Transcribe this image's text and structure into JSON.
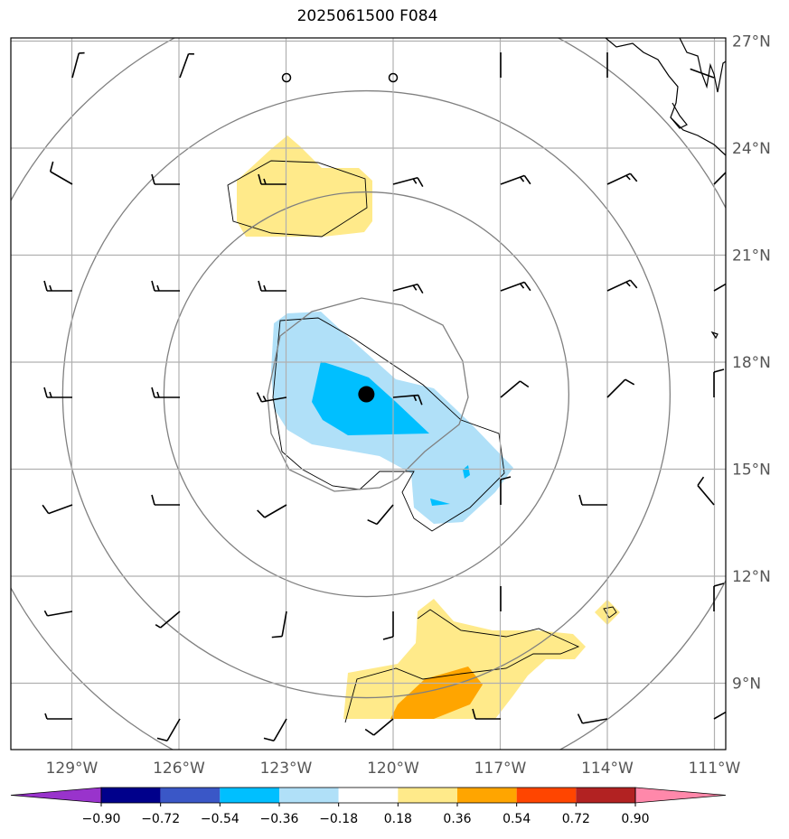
{
  "title": "2025061500 F084",
  "lat_ticks": [
    {
      "value": 27,
      "label": "27°N"
    },
    {
      "value": 24,
      "label": "24°N"
    },
    {
      "value": 21,
      "label": "21°N"
    },
    {
      "value": 18,
      "label": "18°N"
    },
    {
      "value": 15,
      "label": "15°N"
    },
    {
      "value": 12,
      "label": "12°N"
    },
    {
      "value": 9,
      "label": "9°N"
    }
  ],
  "lon_ticks": [
    {
      "value": -129,
      "label": "129°W"
    },
    {
      "value": -126,
      "label": "126°W"
    },
    {
      "value": -123,
      "label": "123°W"
    },
    {
      "value": -120,
      "label": "120°W"
    },
    {
      "value": -117,
      "label": "117°W"
    },
    {
      "value": -114,
      "label": "114°W"
    },
    {
      "value": -111,
      "label": "111°W"
    }
  ],
  "colorbar": {
    "levels": [
      "−0.90",
      "−0.72",
      "−0.54",
      "−0.36",
      "−0.18",
      "0.18",
      "0.36",
      "0.54",
      "0.72",
      "0.90"
    ],
    "colors": [
      "#9933cc",
      "#00008b",
      "#3a57c7",
      "#00bfff",
      "#b0e0f8",
      "#ffffff",
      "#ffea8a",
      "#ffa500",
      "#ff4500",
      "#b22222",
      "#ff88aa"
    ]
  },
  "storm_center": {
    "lon": -120.75,
    "lat": 17.1
  },
  "colors": {
    "ring": "#808080",
    "grid": "#b0b0b0",
    "yellow": "#ffea8a",
    "orange": "#ffa500",
    "lightblue": "#b0e0f8",
    "blue": "#00bfff"
  }
}
